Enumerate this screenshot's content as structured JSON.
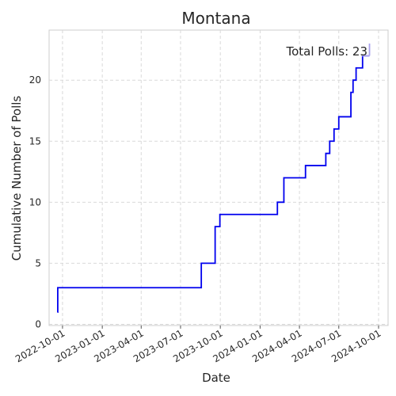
{
  "chart_data": {
    "type": "line",
    "title": "Montana",
    "xlabel": "Date",
    "ylabel": "Cumulative Number of Polls",
    "annotation": "Total Polls: 23",
    "grid": true,
    "line_style": "step-post",
    "series_color": "#0000ee",
    "last_segment_color": "#a9a2ee",
    "x_ticks": [
      "2022-10-01",
      "2023-01-01",
      "2023-04-01",
      "2023-07-01",
      "2023-10-01",
      "2024-01-01",
      "2024-04-01",
      "2024-07-01",
      "2024-10-01"
    ],
    "y_ticks": [
      0,
      5,
      10,
      15,
      20
    ],
    "xlim": [
      "2022-08-31",
      "2024-10-23"
    ],
    "ylim": [
      -0.1,
      24.1
    ],
    "series": [
      {
        "x": [
          "2022-09-19",
          "2022-09-20",
          "2023-08-18",
          "2023-09-19",
          "2023-09-30",
          "2024-02-10",
          "2024-02-25",
          "2024-04-15",
          "2024-06-01",
          "2024-06-10",
          "2024-06-20",
          "2024-07-01",
          "2024-07-29",
          "2024-08-03",
          "2024-08-10",
          "2024-08-25",
          "2024-09-10"
        ],
        "y": [
          1,
          3,
          5,
          8,
          9,
          10,
          12,
          13,
          14,
          15,
          16,
          17,
          19,
          20,
          21,
          22,
          23
        ]
      }
    ]
  }
}
